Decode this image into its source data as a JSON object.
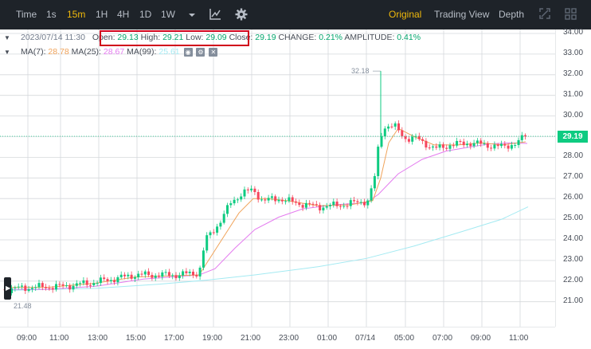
{
  "toolbar": {
    "items": [
      "Time",
      "1s",
      "15m",
      "1H",
      "4H",
      "1D",
      "1W"
    ],
    "active_interval": "15m",
    "views": [
      "Original",
      "Trading View",
      "Depth"
    ],
    "active_view": "Original"
  },
  "ohlc": {
    "date": "2023/07/14 11:30",
    "open_label": "Open:",
    "open": "29.13",
    "high_label": "High:",
    "high": "29.21",
    "low_label": "Low:",
    "low": "29.09",
    "close_label": "Close:",
    "close": "29.19",
    "change_label": "CHANGE:",
    "change": "0.21%",
    "amplitude_label": "AMPLITUDE:",
    "amplitude": "0.41%"
  },
  "ma": {
    "ma7_label": "MA(7):",
    "ma7": "28.78",
    "ma25_label": "MA(25):",
    "ma25": "28.67",
    "ma99_label": "MA(99):",
    "ma99": "25.61"
  },
  "colors": {
    "up": "#0ecb81",
    "down": "#f6465d",
    "ma7": "#f0a35a",
    "ma25": "#e47bef",
    "ma99": "#a4eaf2",
    "accent": "#f0b90b"
  },
  "price_axis": [
    "34.00",
    "33.00",
    "32.00",
    "31.00",
    "30.00",
    "29.00",
    "28.00",
    "27.00",
    "26.00",
    "25.00",
    "24.00",
    "23.00",
    "22.00",
    "21.00"
  ],
  "time_axis": [
    "09:00",
    "11:00",
    "13:00",
    "15:00",
    "17:00",
    "19:00",
    "21:00",
    "23:00",
    "01:00",
    "07/14",
    "05:00",
    "07:00",
    "09:00",
    "11:00"
  ],
  "last_price": "29.19",
  "min_marker": "21.48",
  "max_marker": "32.18"
}
